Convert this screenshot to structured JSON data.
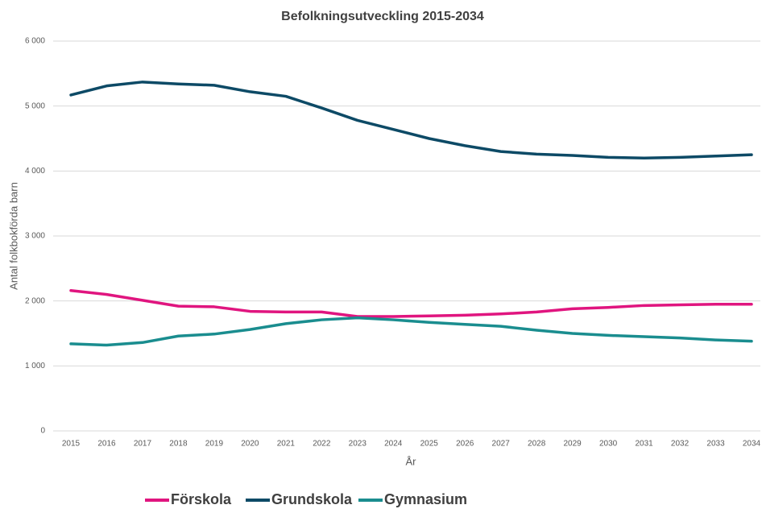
{
  "chart_data": {
    "type": "line",
    "title": "Befolkningsutveckling 2015-2034",
    "x_label": "År",
    "y_label": "Antal folkbokförda barn",
    "categories": [
      "2015",
      "2016",
      "2017",
      "2018",
      "2019",
      "2020",
      "2021",
      "2022",
      "2023",
      "2024",
      "2025",
      "2026",
      "2027",
      "2028",
      "2029",
      "2030",
      "2031",
      "2032",
      "2033",
      "2034"
    ],
    "series": [
      {
        "name": "Förskola",
        "color": "#e0157f",
        "values": [
          2160,
          2100,
          2010,
          1920,
          1910,
          1840,
          1830,
          1830,
          1760,
          1760,
          1770,
          1780,
          1800,
          1830,
          1880,
          1900,
          1930,
          1940,
          1950,
          1950
        ]
      },
      {
        "name": "Grundskola",
        "color": "#0d4a66",
        "values": [
          5170,
          5310,
          5370,
          5340,
          5320,
          5220,
          5150,
          4970,
          4780,
          4640,
          4500,
          4390,
          4300,
          4260,
          4240,
          4210,
          4200,
          4210,
          4230,
          4250
        ]
      },
      {
        "name": "Gymnasium",
        "color": "#1a8d8f",
        "values": [
          1340,
          1320,
          1360,
          1460,
          1490,
          1560,
          1650,
          1710,
          1740,
          1710,
          1670,
          1640,
          1610,
          1550,
          1500,
          1470,
          1450,
          1430,
          1400,
          1380
        ]
      }
    ],
    "ylim": [
      0,
      6000
    ],
    "yticks": [
      0,
      {
        "value": 1000,
        "label": "1 000"
      },
      {
        "value": 2000,
        "label": "2 000"
      },
      {
        "value": 3000,
        "label": "3 000"
      },
      {
        "value": 4000,
        "label": "4 000"
      },
      {
        "value": 5000,
        "label": "5 000"
      },
      {
        "value": 6000,
        "label": "6 000"
      }
    ],
    "grid": true,
    "legend": "bottom"
  }
}
